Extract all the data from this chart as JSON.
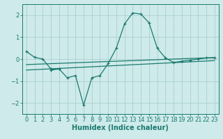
{
  "xlabel": "Humidex (Indice chaleur)",
  "bg_color": "#ceeaea",
  "grid_color": "#aacfcf",
  "line_color": "#1a7a6e",
  "x": [
    0,
    1,
    2,
    3,
    4,
    5,
    6,
    7,
    8,
    9,
    10,
    11,
    12,
    13,
    14,
    15,
    16,
    17,
    18,
    19,
    20,
    21,
    22,
    23
  ],
  "line1": [
    0.35,
    0.08,
    0.0,
    -0.45,
    -0.45,
    null,
    null,
    null,
    null,
    null,
    null,
    null,
    null,
    null,
    null,
    null,
    null,
    null,
    null,
    null,
    null,
    null,
    null,
    null
  ],
  "line2": [
    null,
    null,
    null,
    -0.5,
    -0.45,
    -0.85,
    -0.75,
    -2.1,
    -0.85,
    -0.75,
    -0.2,
    0.5,
    1.6,
    2.1,
    2.05,
    1.65,
    0.5,
    0.05,
    -0.15,
    -0.1,
    -0.05,
    0.0,
    0.05,
    0.05
  ],
  "line3_x": [
    0,
    23
  ],
  "line3_y": [
    -0.25,
    0.07
  ],
  "line4_x": [
    0,
    23
  ],
  "line4_y": [
    -0.5,
    -0.07
  ],
  "ylim": [
    -2.5,
    2.5
  ],
  "xlim": [
    -0.5,
    23.5
  ],
  "yticks": [
    -2,
    -1,
    0,
    1,
    2
  ],
  "xticks": [
    0,
    1,
    2,
    3,
    4,
    5,
    6,
    7,
    8,
    9,
    10,
    11,
    12,
    13,
    14,
    15,
    16,
    17,
    18,
    19,
    20,
    21,
    22,
    23
  ],
  "title_fontsize": 7,
  "label_fontsize": 7,
  "tick_fontsize": 6
}
